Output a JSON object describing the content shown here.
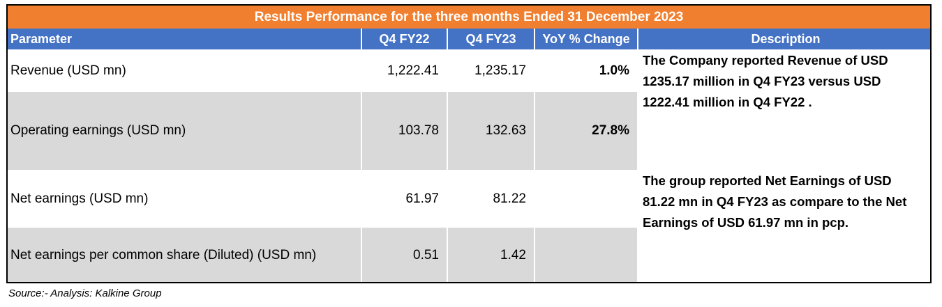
{
  "title": "Results Performance for the three months Ended 31 December 2023",
  "headers": {
    "parameter": "Parameter",
    "q4fy22": "Q4 FY22",
    "q4fy23": "Q4 FY23",
    "yoy": "YoY % Change",
    "description": "Description"
  },
  "rows": [
    {
      "parameter": "Revenue  (USD mn)",
      "q4fy22": "1,222.41",
      "q4fy23": "1,235.17",
      "yoy": "1.0%"
    },
    {
      "parameter": "Operating earnings (USD mn)",
      "q4fy22": "103.78",
      "q4fy23": "132.63",
      "yoy": "27.8%"
    },
    {
      "parameter": "Net earnings (USD mn)",
      "q4fy22": "61.97",
      "q4fy23": "81.22",
      "yoy": ""
    },
    {
      "parameter": "Net earnings per common share (Diluted)  (USD mn)",
      "q4fy22": "0.51",
      "q4fy23": "1.42",
      "yoy": ""
    }
  ],
  "descriptions": {
    "revenue_lines": [
      "The Company reported Revenue of USD",
      "1235.17 million in Q4 FY23 versus  USD",
      "1222.41 million in Q4 FY22 ."
    ],
    "earnings_lines": [
      "The group reported  Net Earnings of USD",
      "81.22 mn in Q4 FY23 as compare to the Net",
      "Earnings of USD 61.97  mn in pcp."
    ]
  },
  "source": "Source:- Analysis: Kalkine Group",
  "colors": {
    "title_bg": "#f07f2f",
    "header_bg": "#4472c4",
    "row_shade": "#d9d9d9"
  }
}
